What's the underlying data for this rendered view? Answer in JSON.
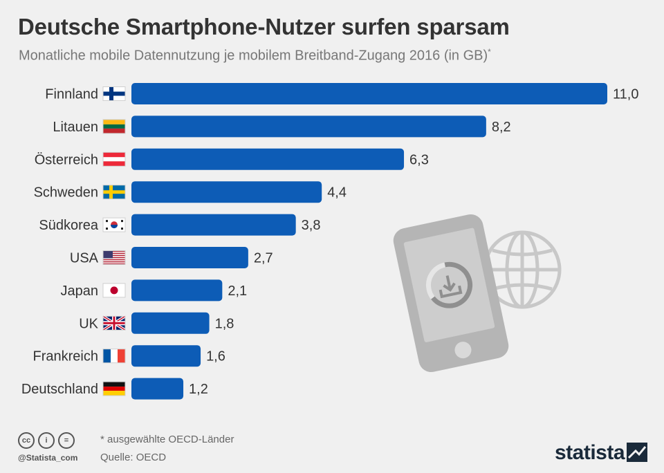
{
  "header": {
    "title": "Deutsche Smartphone-Nutzer surfen sparsam",
    "subtitle": "Monatliche mobile Datennutzung je mobilem Breitband-Zugang 2016 (in GB)",
    "subtitle_note_mark": "*"
  },
  "chart_data": {
    "type": "bar",
    "orientation": "horizontal",
    "title": "Deutsche Smartphone-Nutzer surfen sparsam",
    "subtitle": "Monatliche mobile Datennutzung je mobilem Breitband-Zugang 2016 (in GB)*",
    "categories": [
      "Finnland",
      "Litauen",
      "Österreich",
      "Schweden",
      "Südkorea",
      "USA",
      "Japan",
      "UK",
      "Frankreich",
      "Deutschland"
    ],
    "values": [
      11.0,
      8.2,
      6.3,
      4.4,
      3.8,
      2.7,
      2.1,
      1.8,
      1.6,
      1.2
    ],
    "value_labels": [
      "11,0",
      "8,2",
      "6,3",
      "4,4",
      "3,8",
      "2,7",
      "2,1",
      "1,8",
      "1,6",
      "1,2"
    ],
    "flags": [
      "finland-flag-icon",
      "lithuania-flag-icon",
      "austria-flag-icon",
      "sweden-flag-icon",
      "south-korea-flag-icon",
      "usa-flag-icon",
      "japan-flag-icon",
      "uk-flag-icon",
      "france-flag-icon",
      "germany-flag-icon"
    ],
    "xlim": [
      0,
      11.0
    ],
    "bar_color": "#0d5cb6",
    "grid": false,
    "legend": "none"
  },
  "illustration": {
    "icons": [
      "smartphone-download-icon",
      "globe-icon"
    ],
    "color": "#c8c8c8"
  },
  "footer": {
    "license_icons": [
      "cc-icon",
      "attribution-icon",
      "no-derivatives-icon"
    ],
    "license_symbols": [
      "cc",
      "i",
      "="
    ],
    "handle": "@Statista_com",
    "note": "* ausgewählte OECD-Länder",
    "source": "Quelle: OECD",
    "brand": "statista"
  }
}
